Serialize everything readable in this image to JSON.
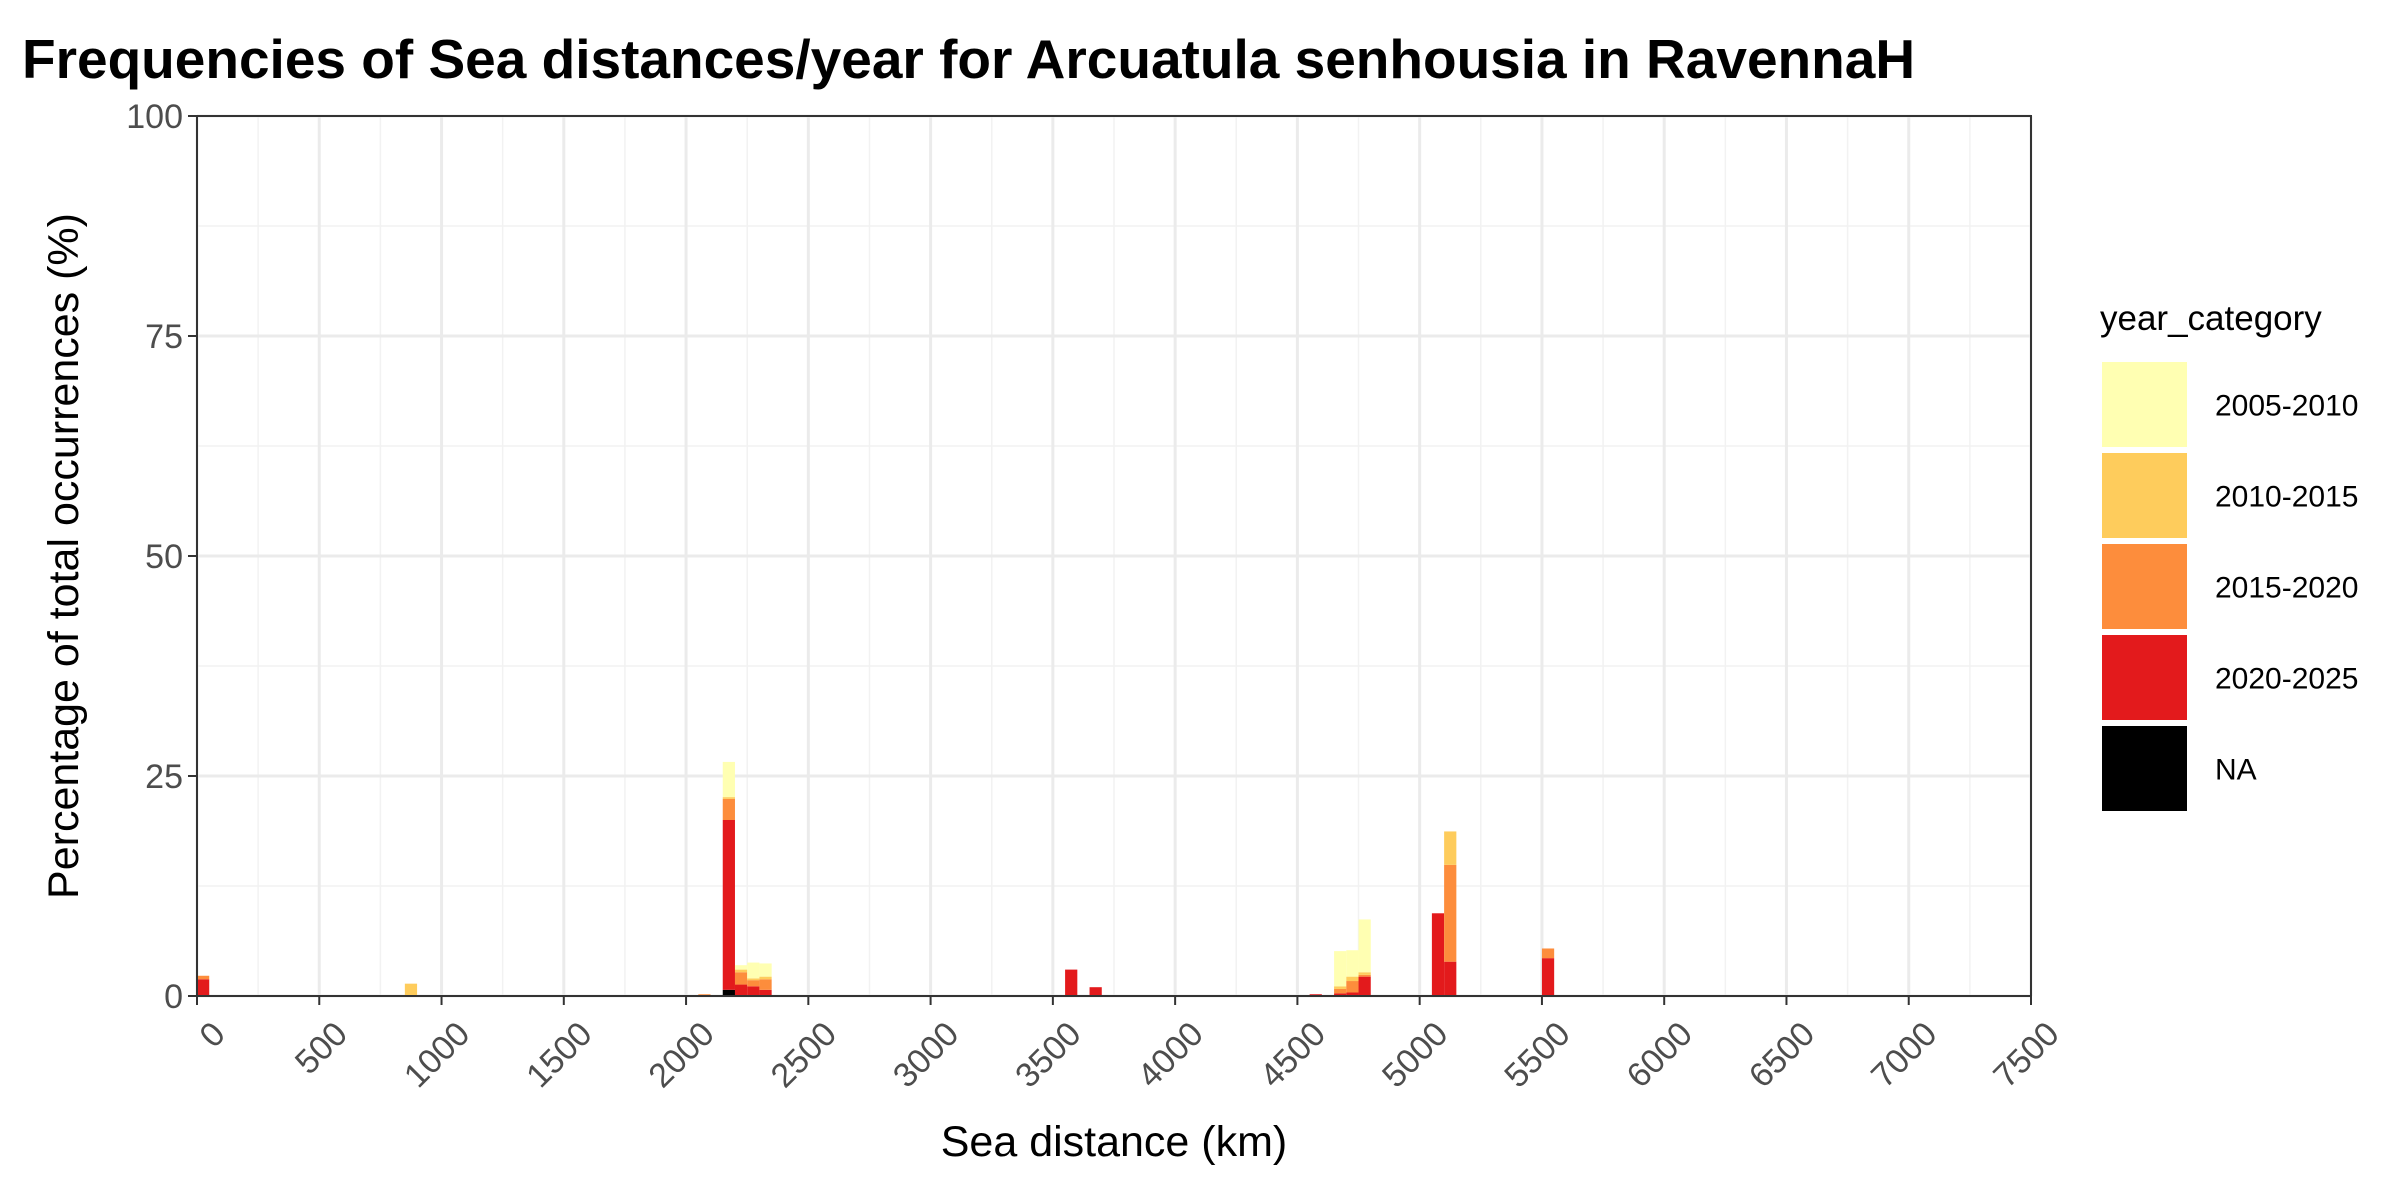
{
  "chart_data": {
    "type": "bar",
    "stacked": true,
    "title": "Frequencies of Sea distances/year for Arcuatula senhousia in RavennaH",
    "xlabel": "Sea distance (km)",
    "ylabel": "Percentage of total occurrences (%)",
    "xlim": [
      0,
      7500
    ],
    "ylim": [
      0,
      100
    ],
    "bin_width": 50,
    "x_ticks": [
      "0",
      "500",
      "1000",
      "1500",
      "2000",
      "2500",
      "3000",
      "3500",
      "4000",
      "4500",
      "5000",
      "5500",
      "6000",
      "6500",
      "7000",
      "7500"
    ],
    "y_ticks": [
      "0",
      "25",
      "50",
      "75",
      "100"
    ],
    "grid": true,
    "legend": {
      "title": "year_category",
      "position": "right",
      "entries": [
        {
          "label": "2005-2010",
          "color": "#ffffb2"
        },
        {
          "label": "2010-2015",
          "color": "#fecc5c"
        },
        {
          "label": "2015-2020",
          "color": "#fd8d3c"
        },
        {
          "label": "2020-2025",
          "color": "#e31a1c"
        },
        {
          "label": "NA",
          "color": "#000000"
        }
      ]
    },
    "stack_order": [
      "NA",
      "2020-2025",
      "2015-2020",
      "2010-2015",
      "2005-2010"
    ],
    "bins": [
      {
        "x": 25,
        "2020-2025": 1.9,
        "2015-2020": 0.4
      },
      {
        "x": 875,
        "2010-2015": 1.4
      },
      {
        "x": 2075,
        "2015-2020": 0.2
      },
      {
        "x": 2175,
        "NA": 0.7,
        "2020-2025": 19.3,
        "2015-2020": 2.4,
        "2010-2015": 0.2,
        "2005-2010": 4.0
      },
      {
        "x": 2225,
        "2020-2025": 1.3,
        "2015-2020": 1.4,
        "2010-2015": 0.3,
        "2005-2010": 0.5
      },
      {
        "x": 2275,
        "2020-2025": 1.1,
        "2015-2020": 0.7,
        "2010-2015": 0.2,
        "2005-2010": 1.8
      },
      {
        "x": 2325,
        "2020-2025": 0.7,
        "2015-2020": 1.2,
        "2010-2015": 0.3,
        "2005-2010": 1.5
      },
      {
        "x": 3575,
        "2020-2025": 3.0
      },
      {
        "x": 3675,
        "2020-2025": 1.0
      },
      {
        "x": 4575,
        "2020-2025": 0.2
      },
      {
        "x": 4675,
        "2020-2025": 0.3,
        "2015-2020": 0.5,
        "2010-2015": 0.3,
        "2005-2010": 4.0
      },
      {
        "x": 4725,
        "2020-2025": 0.4,
        "2015-2020": 1.3,
        "2010-2015": 0.5,
        "2005-2010": 3.0
      },
      {
        "x": 4775,
        "2020-2025": 2.2,
        "2015-2020": 0.2,
        "2010-2015": 0.3,
        "2005-2010": 6.0
      },
      {
        "x": 5075,
        "2020-2025": 9.4
      },
      {
        "x": 5125,
        "2020-2025": 3.9,
        "2015-2020": 11.0,
        "2010-2015": 3.8
      },
      {
        "x": 5525,
        "2020-2025": 4.3,
        "2015-2020": 1.1
      }
    ]
  }
}
